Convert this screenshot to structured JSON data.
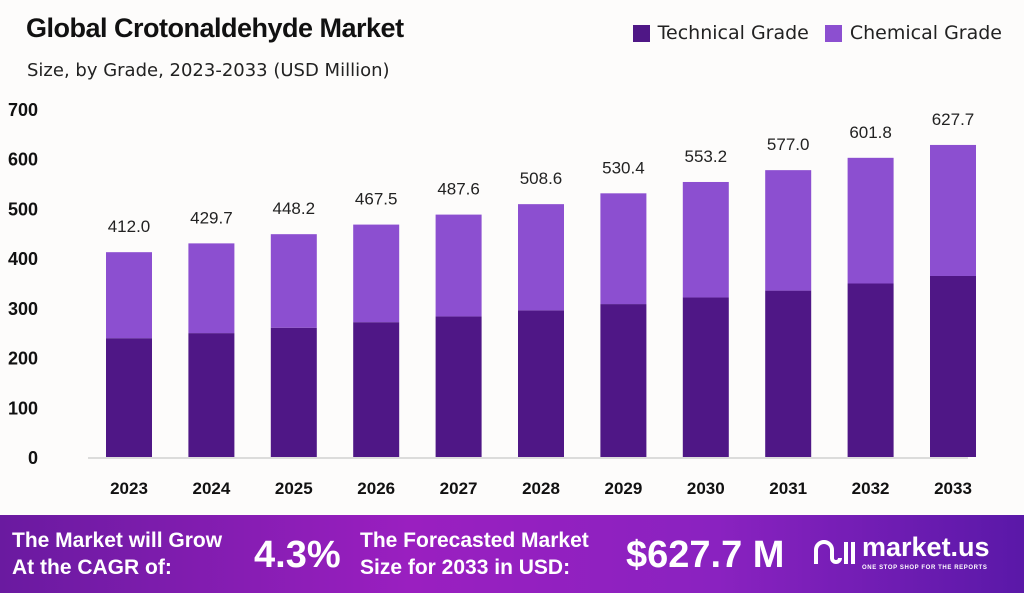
{
  "chart_data": {
    "type": "bar",
    "stacked": true,
    "title": "Global Crotonaldehyde Market",
    "subtitle": "Size, by Grade, 2023-2033 (USD Million)",
    "categories": [
      "2023",
      "2024",
      "2025",
      "2026",
      "2027",
      "2028",
      "2029",
      "2030",
      "2031",
      "2032",
      "2033"
    ],
    "series": [
      {
        "name": "Technical Grade",
        "color": "#4f1786",
        "values": [
          239.0,
          249.2,
          260.0,
          271.2,
          282.8,
          295.0,
          307.6,
          320.9,
          334.7,
          349.0,
          364.1
        ]
      },
      {
        "name": "Chemical Grade",
        "color": "#8c4fd0",
        "values": [
          173.0,
          180.5,
          188.2,
          196.3,
          204.8,
          213.6,
          222.8,
          232.3,
          242.3,
          252.8,
          263.6
        ]
      }
    ],
    "totals": [
      "412.0",
      "429.7",
      "448.2",
      "467.5",
      "487.6",
      "508.6",
      "530.4",
      "553.2",
      "577.0",
      "601.8",
      "627.7"
    ],
    "ylim": [
      0,
      700
    ],
    "yticks": [
      "0",
      "100",
      "200",
      "300",
      "400",
      "500",
      "600",
      "700"
    ],
    "grid": false,
    "legend": "top-right"
  },
  "footer": {
    "cagr_label_1": "The Market will Grow",
    "cagr_label_2": "At the CAGR of:",
    "cagr_value": "4.3%",
    "forecast_label_1": "The Forecasted Market",
    "forecast_label_2": "Size for 2033 in USD:",
    "forecast_value": "$627.7 M",
    "brand": "market.us",
    "brand_tagline": "ONE STOP SHOP FOR THE REPORTS"
  }
}
